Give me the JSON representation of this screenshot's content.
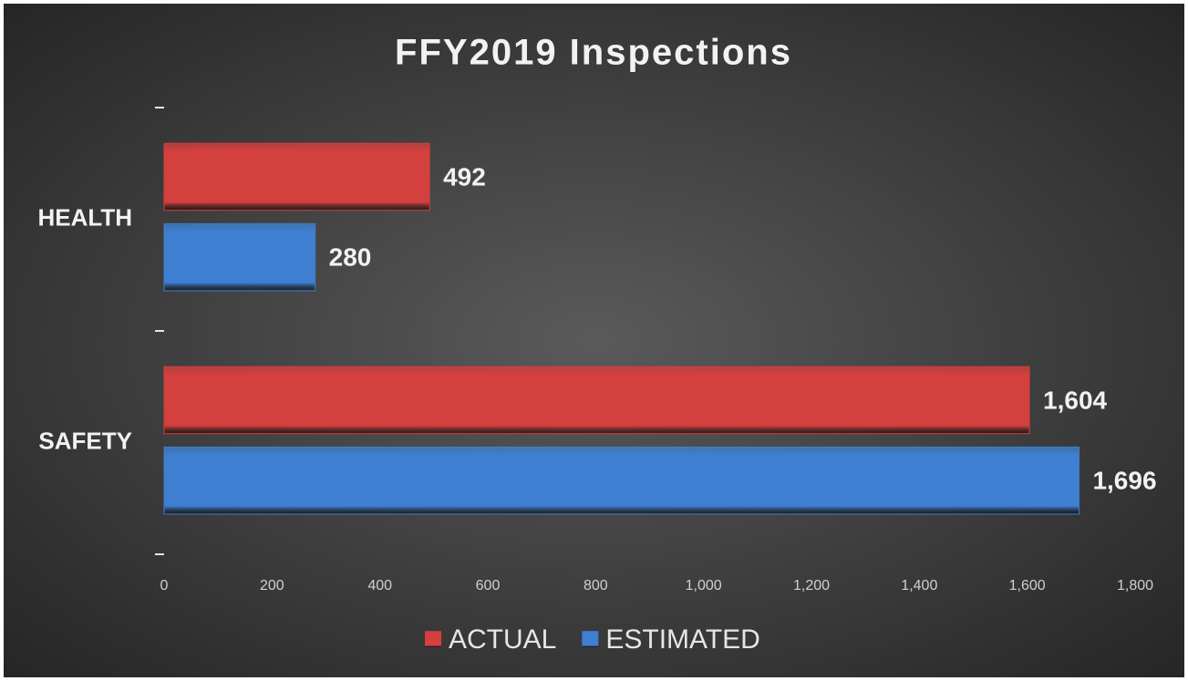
{
  "chart_data": {
    "type": "hbar",
    "title": "FFY2019 Inspections",
    "categories": [
      "HEALTH",
      "SAFETY"
    ],
    "series": [
      {
        "name": "ACTUAL",
        "color": "#d4403d",
        "values": [
          492,
          1604
        ],
        "value_labels": [
          "492",
          "1,604"
        ]
      },
      {
        "name": "ESTIMATED",
        "color": "#3f7fd1",
        "values": [
          280,
          1696
        ],
        "value_labels": [
          "280",
          "1,696"
        ]
      }
    ],
    "xlim": [
      0,
      1800
    ],
    "xticks": [
      0,
      200,
      400,
      600,
      800,
      {
        "value": 1000,
        "label": "1,000"
      },
      {
        "value": 1200,
        "label": "1,200"
      },
      {
        "value": 1400,
        "label": "1,400"
      },
      {
        "value": 1600,
        "label": "1,600"
      },
      {
        "value": 1800,
        "label": "1,800"
      }
    ],
    "legend": "bottom"
  }
}
